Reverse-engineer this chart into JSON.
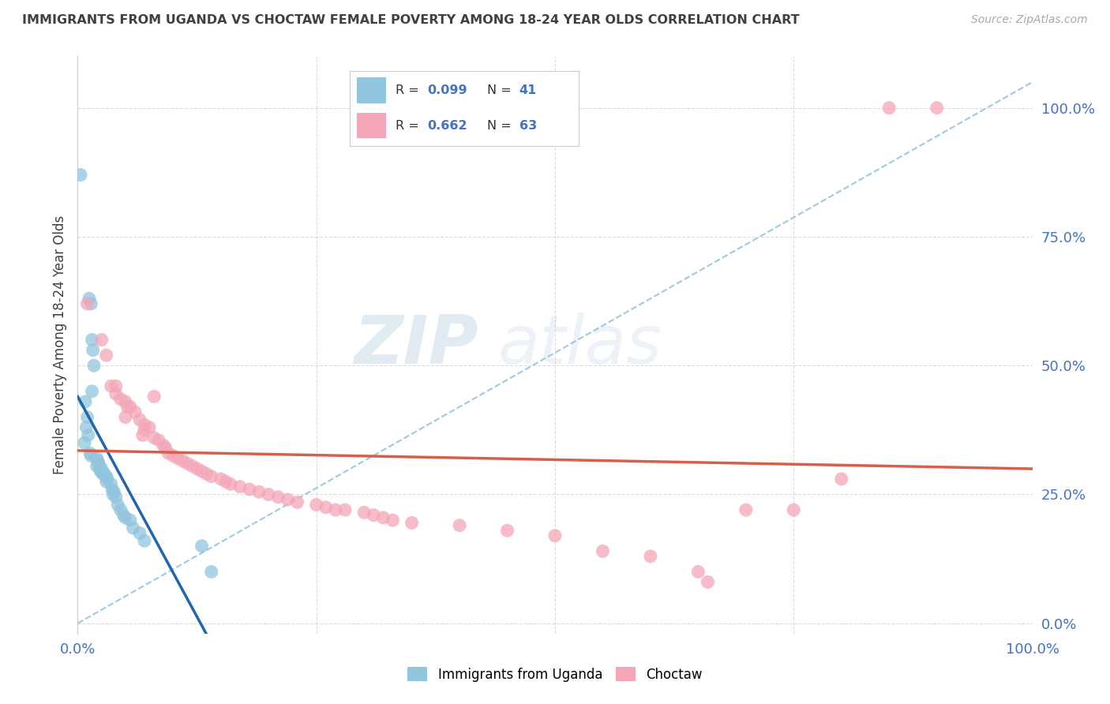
{
  "title": "IMMIGRANTS FROM UGANDA VS CHOCTAW FEMALE POVERTY AMONG 18-24 YEAR OLDS CORRELATION CHART",
  "source": "Source: ZipAtlas.com",
  "ylabel": "Female Poverty Among 18-24 Year Olds",
  "legend_r1": "R = 0.099",
  "legend_n1": "N = 41",
  "legend_r2": "R = 0.662",
  "legend_n2": "N = 63",
  "legend_label1": "Immigrants from Uganda",
  "legend_label2": "Choctaw",
  "watermark_zip": "ZIP",
  "watermark_atlas": "atlas",
  "blue_color": "#92c5de",
  "pink_color": "#f4a6b8",
  "blue_line_color": "#2166ac",
  "pink_line_color": "#d6604d",
  "blue_dash_color": "#92c5de",
  "label_color": "#4472c4",
  "title_color": "#404040",
  "bg_color": "#ffffff",
  "grid_color": "#cccccc",
  "blue_dots": [
    [
      0.3,
      87.0
    ],
    [
      1.2,
      63.0
    ],
    [
      1.4,
      62.0
    ],
    [
      1.5,
      55.0
    ],
    [
      1.6,
      53.0
    ],
    [
      1.7,
      50.0
    ],
    [
      1.5,
      45.0
    ],
    [
      0.8,
      43.0
    ],
    [
      1.0,
      40.0
    ],
    [
      0.9,
      38.0
    ],
    [
      1.1,
      36.5
    ],
    [
      0.7,
      35.0
    ],
    [
      1.3,
      33.0
    ],
    [
      1.4,
      32.5
    ],
    [
      2.0,
      32.0
    ],
    [
      2.1,
      31.5
    ],
    [
      2.2,
      31.0
    ],
    [
      2.0,
      30.5
    ],
    [
      2.5,
      30.0
    ],
    [
      2.3,
      30.0
    ],
    [
      2.4,
      29.5
    ],
    [
      2.6,
      29.0
    ],
    [
      2.8,
      29.0
    ],
    [
      3.0,
      28.5
    ],
    [
      3.1,
      28.0
    ],
    [
      3.0,
      27.5
    ],
    [
      3.5,
      27.0
    ],
    [
      3.6,
      26.0
    ],
    [
      3.8,
      25.5
    ],
    [
      3.7,
      25.0
    ],
    [
      4.0,
      24.5
    ],
    [
      4.2,
      23.0
    ],
    [
      4.5,
      22.0
    ],
    [
      4.8,
      21.0
    ],
    [
      5.0,
      20.5
    ],
    [
      5.5,
      20.0
    ],
    [
      5.8,
      18.5
    ],
    [
      6.5,
      17.5
    ],
    [
      7.0,
      16.0
    ],
    [
      13.0,
      15.0
    ],
    [
      14.0,
      10.0
    ]
  ],
  "pink_dots": [
    [
      1.0,
      62.0
    ],
    [
      2.5,
      55.0
    ],
    [
      3.0,
      52.0
    ],
    [
      3.5,
      46.0
    ],
    [
      4.0,
      44.5
    ],
    [
      4.5,
      43.5
    ],
    [
      5.0,
      43.0
    ],
    [
      5.2,
      42.0
    ],
    [
      5.5,
      42.0
    ],
    [
      6.0,
      41.0
    ],
    [
      6.5,
      39.5
    ],
    [
      7.0,
      38.5
    ],
    [
      7.5,
      38.0
    ],
    [
      7.0,
      37.5
    ],
    [
      6.8,
      36.5
    ],
    [
      8.0,
      36.0
    ],
    [
      8.5,
      35.5
    ],
    [
      9.0,
      34.5
    ],
    [
      9.2,
      34.0
    ],
    [
      9.5,
      33.0
    ],
    [
      10.0,
      32.5
    ],
    [
      10.5,
      32.0
    ],
    [
      11.0,
      31.5
    ],
    [
      11.5,
      31.0
    ],
    [
      12.0,
      30.5
    ],
    [
      12.5,
      30.0
    ],
    [
      13.0,
      29.5
    ],
    [
      13.5,
      29.0
    ],
    [
      14.0,
      28.5
    ],
    [
      15.0,
      28.0
    ],
    [
      15.5,
      27.5
    ],
    [
      16.0,
      27.0
    ],
    [
      17.0,
      26.5
    ],
    [
      18.0,
      26.0
    ],
    [
      19.0,
      25.5
    ],
    [
      20.0,
      25.0
    ],
    [
      21.0,
      24.5
    ],
    [
      22.0,
      24.0
    ],
    [
      23.0,
      23.5
    ],
    [
      25.0,
      23.0
    ],
    [
      26.0,
      22.5
    ],
    [
      27.0,
      22.0
    ],
    [
      28.0,
      22.0
    ],
    [
      30.0,
      21.5
    ],
    [
      31.0,
      21.0
    ],
    [
      32.0,
      20.5
    ],
    [
      33.0,
      20.0
    ],
    [
      35.0,
      19.5
    ],
    [
      40.0,
      19.0
    ],
    [
      45.0,
      18.0
    ],
    [
      50.0,
      17.0
    ],
    [
      55.0,
      14.0
    ],
    [
      60.0,
      13.0
    ],
    [
      65.0,
      10.0
    ],
    [
      66.0,
      8.0
    ],
    [
      70.0,
      22.0
    ],
    [
      75.0,
      22.0
    ],
    [
      80.0,
      28.0
    ],
    [
      85.0,
      100.0
    ],
    [
      90.0,
      100.0
    ],
    [
      5.0,
      40.0
    ],
    [
      8.0,
      44.0
    ],
    [
      4.0,
      46.0
    ]
  ],
  "xlim": [
    0,
    100
  ],
  "ylim": [
    -2,
    110
  ],
  "ytick_vals": [
    0,
    25,
    50,
    75,
    100
  ],
  "ytick_labels": [
    "0.0%",
    "25.0%",
    "50.0%",
    "75.0%",
    "100.0%"
  ],
  "xtick_vals": [
    0,
    25,
    50,
    75,
    100
  ],
  "xtick_labels": [
    "0.0%",
    "",
    "",
    "",
    "100.0%"
  ]
}
